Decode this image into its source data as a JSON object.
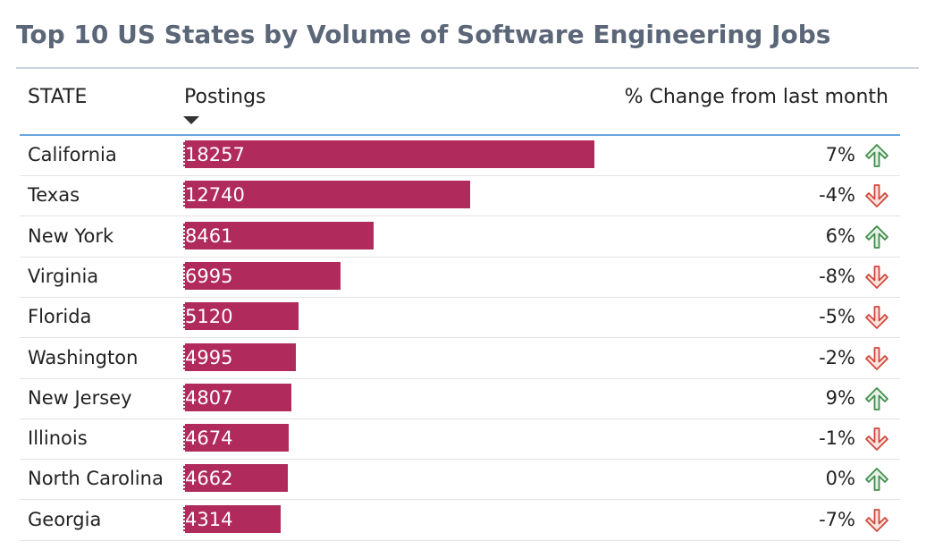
{
  "chart_data": {
    "type": "table",
    "title": "Top 10 US States by Volume of Software Engineering Jobs",
    "columns": [
      "STATE",
      "Postings",
      "% Change from last month"
    ],
    "sort_column": "Postings",
    "sort_direction": "descending",
    "categories": [
      "California",
      "Texas",
      "New York",
      "Virginia",
      "Florida",
      "Washington",
      "New Jersey",
      "Illinois",
      "North Carolina",
      "Georgia"
    ],
    "series": [
      {
        "name": "Postings",
        "values": [
          18257,
          12740,
          8461,
          6995,
          5120,
          4995,
          4807,
          4674,
          4662,
          4314
        ]
      },
      {
        "name": "% Change from last month",
        "values": [
          7,
          -4,
          6,
          -8,
          -5,
          -2,
          9,
          -1,
          0,
          -7
        ]
      }
    ],
    "pct_labels": [
      "7%",
      "-4%",
      "6%",
      "-8%",
      "-5%",
      "-2%",
      "9%",
      "-1%",
      "0%",
      "-7%"
    ],
    "trend": [
      "up",
      "down",
      "up",
      "down",
      "down",
      "down",
      "up",
      "down",
      "up",
      "down"
    ],
    "max_value": 18257,
    "colors": {
      "bar": "#b02a5b",
      "up": "#3f8f4a",
      "down": "#d04a3a",
      "title": "#5b6778"
    }
  }
}
